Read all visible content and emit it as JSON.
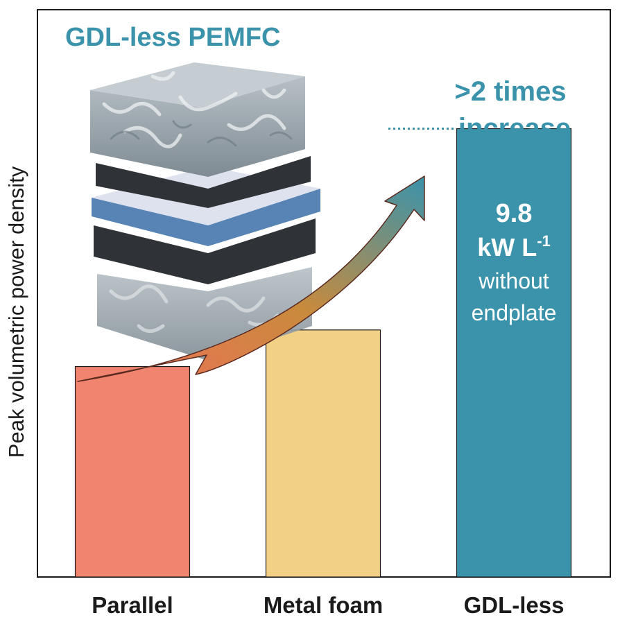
{
  "chart_data": {
    "type": "bar",
    "title": "GDL-less PEMFC",
    "ylabel": "Peak volumetric power density",
    "xlabel": "",
    "categories": [
      "Parallel",
      "Metal foam",
      "GDL-less"
    ],
    "values": [
      4.6,
      5.4,
      9.8
    ],
    "ylim": [
      0,
      12.4
    ],
    "bar_colors": [
      "#f0846f",
      "#f2d085",
      "#3a93ab"
    ],
    "grid": false,
    "annotation": {
      "line1": ">2 times",
      "line2": "increase"
    },
    "bar_label": {
      "value": "9.8",
      "unit_base": "kW L",
      "unit_sup": "-1",
      "note1": "without",
      "note2": "endplate"
    }
  },
  "colors": {
    "accent": "#3a93ab",
    "axis": "#1a1a1a",
    "arrow_start": "#ef6f5b",
    "arrow_mid": "#c98a3c",
    "arrow_end": "#3a93ab",
    "foam": "#9aa6ae",
    "layer_dark": "#2f3236",
    "membrane": "#3b6ea8"
  },
  "illustration": {
    "name": "gdl-less-fuel-cell-3d-render"
  }
}
